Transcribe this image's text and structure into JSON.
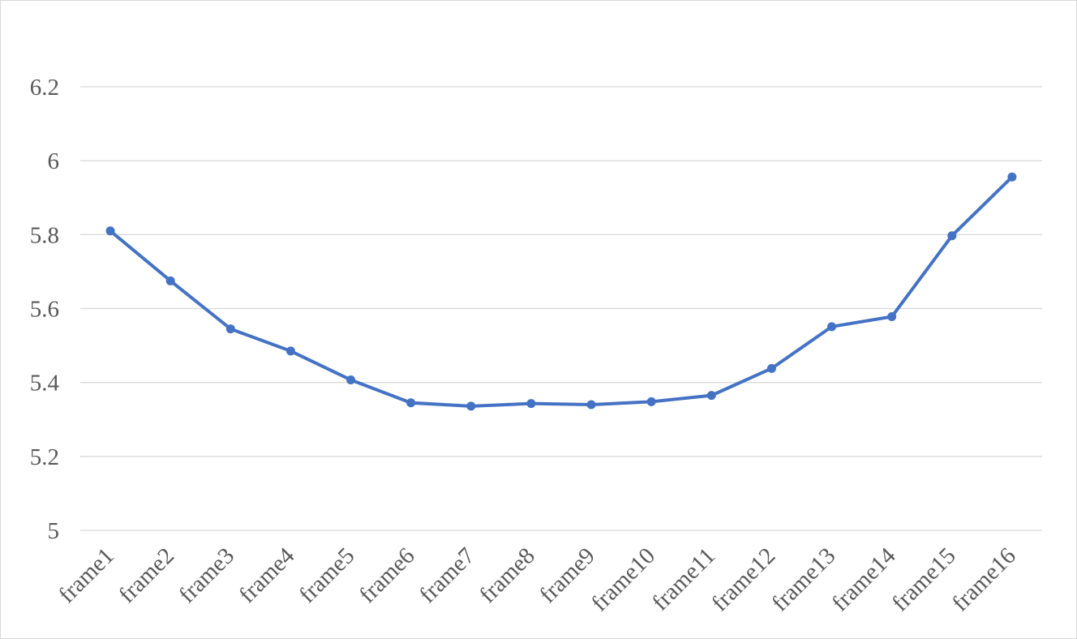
{
  "chart_data": {
    "type": "line",
    "title": "",
    "xlabel": "",
    "ylabel": "",
    "categories": [
      "frame1",
      "frame2",
      "frame3",
      "frame4",
      "frame5",
      "frame6",
      "frame7",
      "frame8",
      "frame9",
      "frame10",
      "frame11",
      "frame12",
      "frame13",
      "frame14",
      "frame15",
      "frame16"
    ],
    "series": [
      {
        "values": [
          5.81,
          5.675,
          5.545,
          5.485,
          5.407,
          5.345,
          5.336,
          5.343,
          5.34,
          5.348,
          5.365,
          5.438,
          5.551,
          5.578,
          5.797,
          5.956
        ],
        "color": "#4472c4",
        "marker": "circle"
      }
    ],
    "ylim": [
      5,
      6.2
    ],
    "yticks": [
      5,
      5.2,
      5.4,
      5.6,
      5.8,
      6,
      6.2
    ],
    "ytick_labels": [
      "5",
      "5.2",
      "5.4",
      "5.6",
      "5.8",
      "6",
      "6.2"
    ],
    "grid": true,
    "legend": "none"
  }
}
